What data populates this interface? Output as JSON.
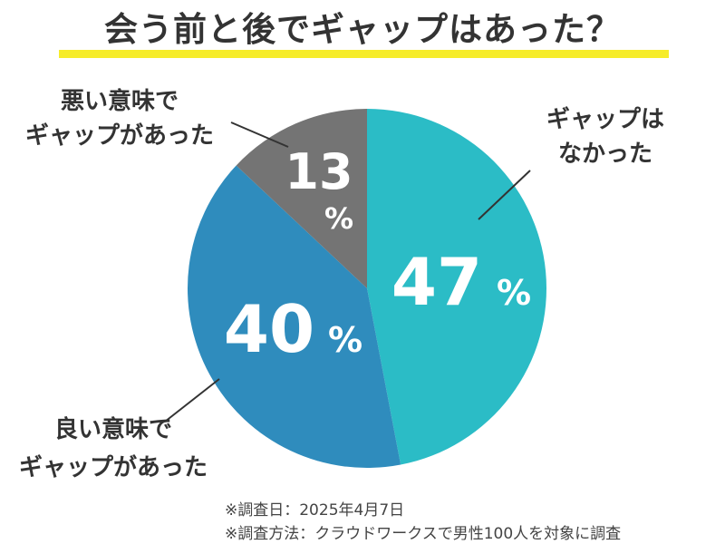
{
  "title": "会う前と後でギャップはあった？",
  "footnotes": [
    "※調査日：2025年4月7日",
    "※調査方法：クラウドワークスで男性100人を対象に調査"
  ],
  "colors": {
    "title_underline": "#f6ec2a",
    "slice_none": "#2bbcc6",
    "slice_good": "#2f8cbd",
    "slice_bad": "#747474",
    "text": "#333333"
  },
  "chart_data": {
    "type": "pie",
    "unit": "%",
    "slices": [
      {
        "label_lines": [
          "ギャップは",
          "なかった"
        ],
        "value": 47,
        "color": "#2bbcc6"
      },
      {
        "label_lines": [
          "良い意味で",
          "ギャップがあった"
        ],
        "value": 40,
        "color": "#2f8cbd"
      },
      {
        "label_lines": [
          "悪い意味で",
          "ギャップがあった"
        ],
        "value": 13,
        "color": "#747474"
      }
    ]
  }
}
